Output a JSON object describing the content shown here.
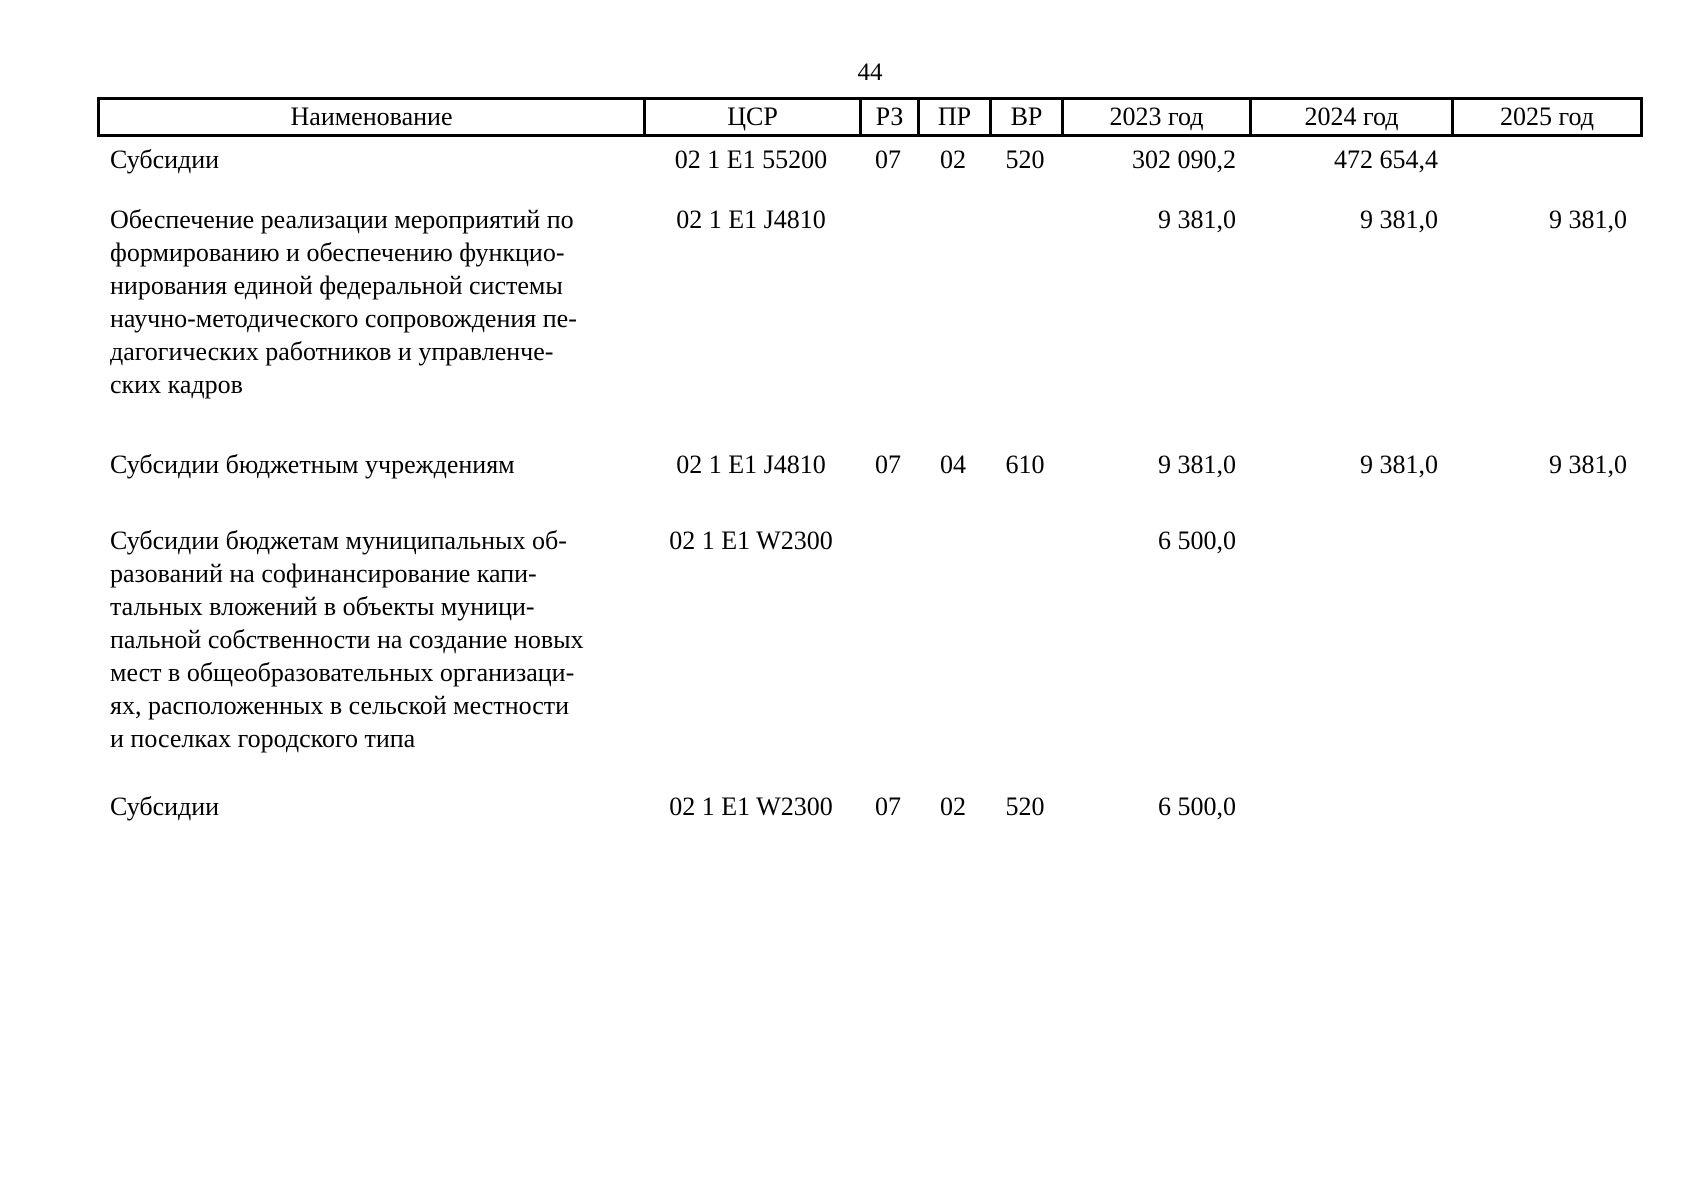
{
  "page": {
    "number": "44"
  },
  "table": {
    "columns": [
      {
        "key": "name",
        "label": "Наименование"
      },
      {
        "key": "csr",
        "label": "ЦСР"
      },
      {
        "key": "rz",
        "label": "РЗ"
      },
      {
        "key": "pr",
        "label": "ПР"
      },
      {
        "key": "vr",
        "label": "ВР"
      },
      {
        "key": "y2023",
        "label": "2023 год"
      },
      {
        "key": "y2024",
        "label": "2024 год"
      },
      {
        "key": "y2025",
        "label": "2025 год"
      }
    ],
    "rows": [
      {
        "name_lines": [
          "Субсидии"
        ],
        "csr": "02 1 E1 55200",
        "rz": "07",
        "pr": "02",
        "vr": "520",
        "y2023": "302 090,2",
        "y2024": "472 654,4",
        "y2025": ""
      },
      {
        "name_lines": [
          "Обеспечение реализации мероприятий по",
          "формированию и обеспечению функцио-",
          "нирования единой федеральной системы",
          "научно-методического сопровождения пе-",
          "дагогических работников и управленче-",
          "ских кадров"
        ],
        "csr": "02 1 E1 J4810",
        "rz": "",
        "pr": "",
        "vr": "",
        "y2023": "9 381,0",
        "y2024": "9 381,0",
        "y2025": "9 381,0"
      },
      {
        "name_lines": [
          "Субсидии бюджетным учреждениям"
        ],
        "csr": "02 1 E1 J4810",
        "rz": "07",
        "pr": "04",
        "vr": "610",
        "y2023": "9 381,0",
        "y2024": "9 381,0",
        "y2025": "9 381,0"
      },
      {
        "name_lines": [
          "Субсидии бюджетам муниципальных об-",
          "разований на софинансирование капи-",
          "тальных вложений в объекты муници-",
          "пальной собственности на создание новых",
          "мест в общеобразовательных организаци-",
          "ях, расположенных в сельской местности",
          "и поселках городского типа"
        ],
        "csr": "02 1 E1 W2300",
        "rz": "",
        "pr": "",
        "vr": "",
        "y2023": "6 500,0",
        "y2024": "",
        "y2025": ""
      },
      {
        "name_lines": [
          "Субсидии"
        ],
        "csr": "02 1 E1 W2300",
        "rz": "07",
        "pr": "02",
        "vr": "520",
        "y2023": "6 500,0",
        "y2024": "",
        "y2025": ""
      }
    ]
  }
}
